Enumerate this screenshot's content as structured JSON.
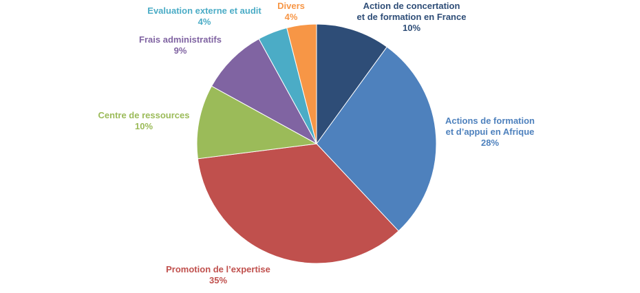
{
  "chart_data": {
    "type": "pie",
    "title": "",
    "start_angle_deg": 0,
    "direction": "clockwise",
    "slices": [
      {
        "label_lines": [
          "Action de concertation",
          "et de formation en France"
        ],
        "value": 10,
        "value_label": "10%",
        "color": "#2E4D77",
        "label_color": "#2E4D77"
      },
      {
        "label_lines": [
          "Actions de formation",
          "et d’appui en Afrique"
        ],
        "value": 28,
        "value_label": "28%",
        "color": "#4E81BD",
        "label_color": "#4E81BD"
      },
      {
        "label_lines": [
          "Promotion de l’expertise"
        ],
        "value": 35,
        "value_label": "35%",
        "color": "#C0504D",
        "label_color": "#C0504D"
      },
      {
        "label_lines": [
          "Centre de ressources"
        ],
        "value": 10,
        "value_label": "10%",
        "color": "#9BBB59",
        "label_color": "#9BBB59"
      },
      {
        "label_lines": [
          "Frais administratifs"
        ],
        "value": 9,
        "value_label": "9%",
        "color": "#8064A2",
        "label_color": "#8064A2"
      },
      {
        "label_lines": [
          "Evaluation externe et audit"
        ],
        "value": 4,
        "value_label": "4%",
        "color": "#4BACC6",
        "label_color": "#4BACC6"
      },
      {
        "label_lines": [
          "Divers"
        ],
        "value": 4,
        "value_label": "4%",
        "color": "#F79646",
        "label_color": "#F79646"
      }
    ]
  }
}
